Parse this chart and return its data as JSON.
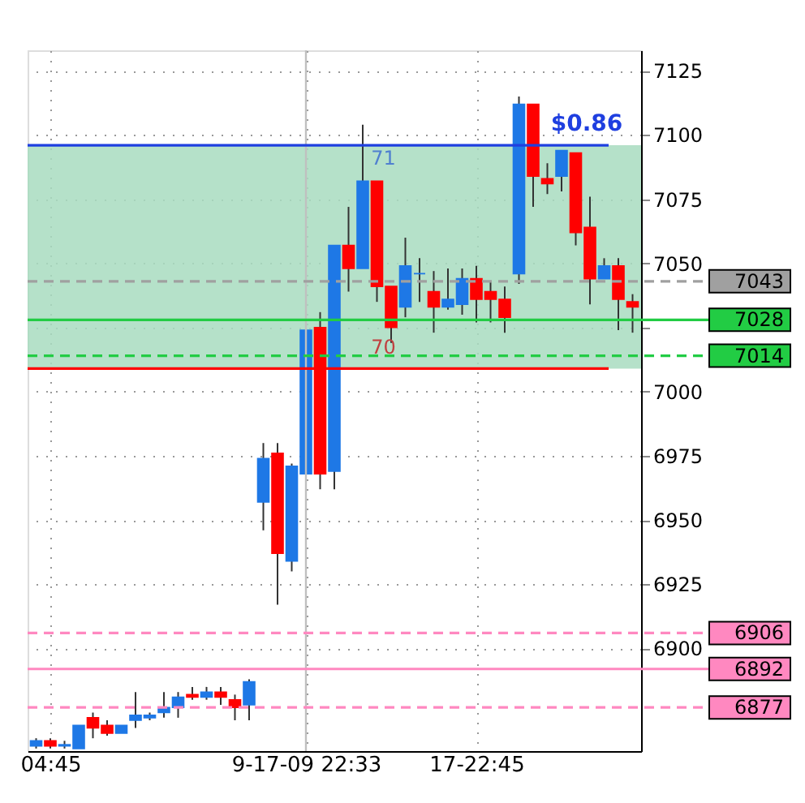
{
  "chart_data": {
    "type": "candlestick",
    "categories": [
      null,
      "04:45",
      null,
      null,
      null,
      null,
      null,
      null,
      null,
      null,
      null,
      null,
      null,
      null,
      null,
      null,
      null,
      null,
      null,
      "9-17-09 22:33",
      null,
      null,
      null,
      null,
      null,
      null,
      null,
      null,
      null,
      null,
      null,
      "17-22:45",
      null,
      null,
      null,
      null,
      null,
      null,
      null,
      null,
      null,
      null,
      null
    ],
    "ohlc": [
      [
        6862,
        6865,
        6861,
        6864
      ],
      [
        6864,
        6865,
        6861,
        6862
      ],
      [
        6862,
        6864,
        6861,
        6862.5
      ],
      [
        6861,
        6870,
        6861,
        6870
      ],
      [
        6873,
        6875,
        6865,
        6869
      ],
      [
        6870,
        6872,
        6866,
        6867
      ],
      [
        6867,
        6870,
        6867,
        6870
      ],
      [
        6872,
        6883,
        6869,
        6874
      ],
      [
        6873,
        6875,
        6872,
        6874
      ],
      [
        6875,
        6883,
        6873,
        6877
      ],
      [
        6877,
        6883,
        6873,
        6881
      ],
      [
        6882,
        6885,
        6880,
        6881
      ],
      [
        6881,
        6885,
        6880,
        6883
      ],
      [
        6883,
        6885,
        6878,
        6881
      ],
      [
        6880,
        6882,
        6872,
        6877
      ],
      [
        6878,
        6888,
        6872,
        6887
      ],
      [
        6957,
        6980,
        6946,
        6974
      ],
      [
        6976,
        6980,
        6917,
        6937
      ],
      [
        6934,
        6972,
        6930,
        6971
      ],
      [
        6968,
        7024,
        6968,
        7024
      ],
      [
        7025,
        7031,
        6962,
        6968
      ],
      [
        6969,
        7057,
        6962,
        7057
      ],
      [
        7057,
        7072,
        7039,
        7048
      ],
      [
        7048,
        7104,
        7048,
        7082
      ],
      [
        7082,
        7082,
        7035,
        7041
      ],
      [
        7041,
        7041,
        7019,
        7025
      ],
      [
        7033,
        7060,
        7029,
        7049
      ],
      [
        7046,
        7052,
        7035,
        7046
      ],
      [
        7039,
        7047,
        7023,
        7033
      ],
      [
        7033,
        7048,
        7032,
        7036
      ],
      [
        7034,
        7048,
        7030,
        7044
      ],
      [
        7044,
        7049,
        7027,
        7036
      ],
      [
        7039,
        7043,
        7027,
        7036
      ],
      [
        7036,
        7041,
        7023,
        7029
      ],
      [
        7046,
        7115,
        7042,
        7112
      ],
      [
        7112,
        7112,
        7072,
        7084
      ],
      [
        7083,
        7089,
        7077,
        7081
      ],
      [
        7084,
        7094,
        7078,
        7094
      ],
      [
        7093,
        7093,
        7057,
        7062
      ],
      [
        7064,
        7076,
        7034,
        7044
      ],
      [
        7044,
        7052,
        7044,
        7049
      ],
      [
        7049,
        7052,
        7024,
        7036
      ],
      [
        7035,
        7038,
        7023,
        7033
      ]
    ],
    "colors": [
      "#1e78e6",
      "#ff0000",
      "#1e78e6",
      "#1e78e6",
      "#ff0000",
      "#ff0000",
      "#1e78e6",
      "#1e78e6",
      "#1e78e6",
      "#1e78e6",
      "#1e78e6",
      "#ff0000",
      "#1e78e6",
      "#ff0000",
      "#ff0000",
      "#1e78e6",
      "#1e78e6",
      "#ff0000",
      "#1e78e6",
      "#1e78e6",
      "#ff0000",
      "#1e78e6",
      "#ff0000",
      "#1e78e6",
      "#ff0000",
      "#ff0000",
      "#1e78e6",
      "#1e78e6",
      "#ff0000",
      "#1e78e6",
      "#1e78e6",
      "#ff0000",
      "#ff0000",
      "#ff0000",
      "#1e78e6",
      "#ff0000",
      "#ff0000",
      "#1e78e6",
      "#ff0000",
      "#ff0000",
      "#1e78e6",
      "#ff0000",
      "#ff0000"
    ],
    "ylim": [
      6860,
      7133
    ],
    "yticks": [
      6900,
      6925,
      6950,
      6975,
      7000,
      {
        "value": 7025,
        "label": null
      },
      7050,
      7075,
      7100,
      7125
    ],
    "grid": true,
    "bands": [
      {
        "axis": "y",
        "from": 7009,
        "to": 7096,
        "color": "#a8dcc0"
      }
    ],
    "ref_lines": [
      {
        "axis": "x",
        "value": "9-17-09 22:33",
        "color": "#c0c0c0",
        "line_style": "solid"
      },
      {
        "axis": "y",
        "value": 7096,
        "color": "#1f3fe0",
        "line_style": "solid"
      },
      {
        "axis": "y",
        "value": 7009,
        "color": "#ff0000",
        "line_style": "solid"
      },
      {
        "axis": "y",
        "value": 7043,
        "label": "7043",
        "color": "#a0a0a0",
        "line_style": "dashed"
      },
      {
        "axis": "y",
        "value": 7028,
        "label": "7028",
        "color": "#22cc44",
        "line_style": "solid"
      },
      {
        "axis": "y",
        "value": 7014,
        "label": "7014",
        "color": "#22cc44",
        "line_style": "dashed"
      },
      {
        "axis": "y",
        "value": 6906,
        "label": "6906",
        "color": "#ff88c0",
        "line_style": "dashed"
      },
      {
        "axis": "y",
        "value": 6892,
        "label": "6892",
        "color": "#ff88c0",
        "line_style": "solid"
      },
      {
        "axis": "y",
        "value": 6877,
        "label": "6877",
        "color": "#ff88c0",
        "line_style": "dashed"
      }
    ],
    "annotations": [
      {
        "text": "$0.86",
        "y": 7096
      },
      {
        "text": "71",
        "y": 7096
      },
      {
        "text": "70",
        "y": 7009
      }
    ]
  }
}
